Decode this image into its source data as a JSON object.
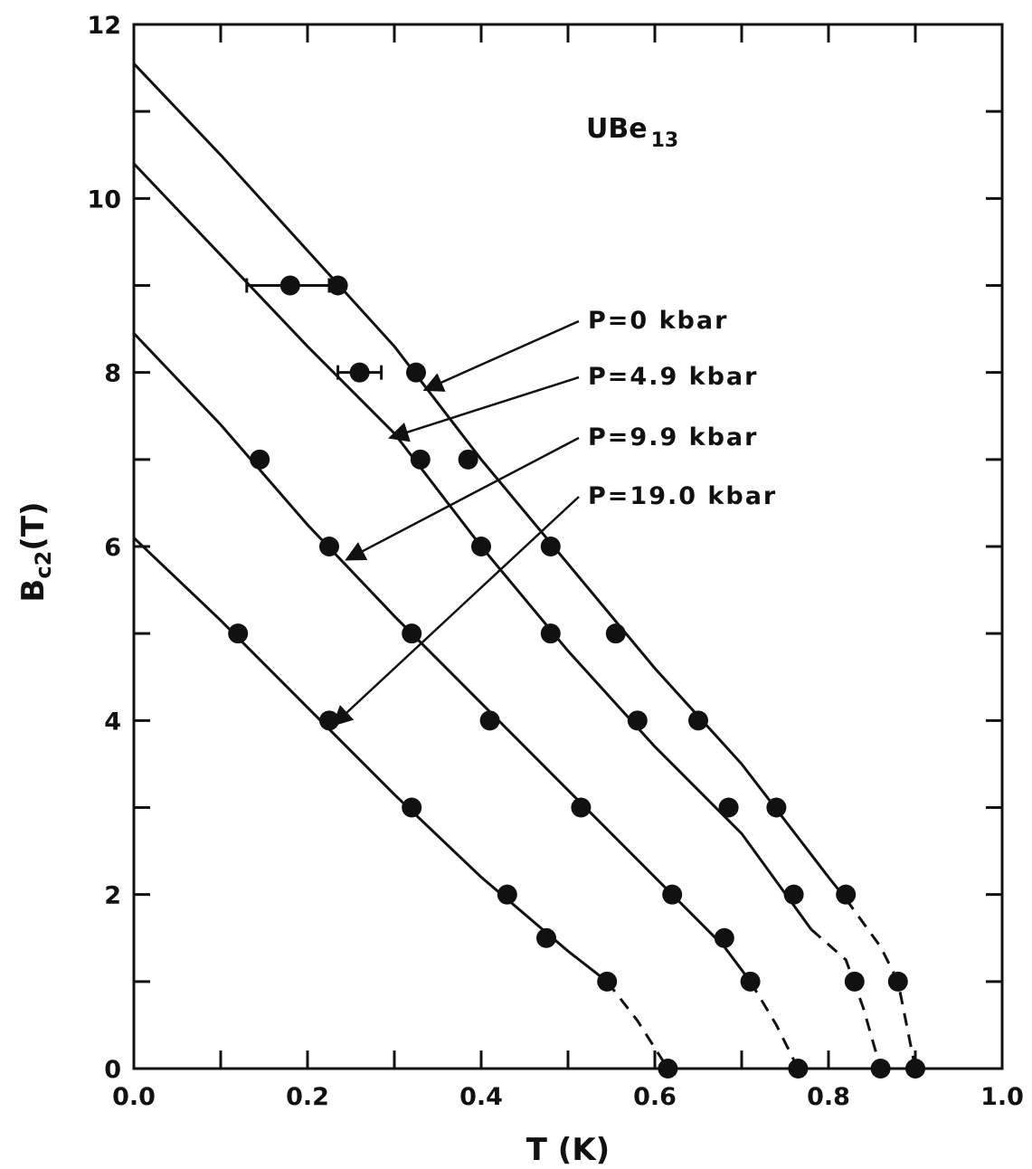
{
  "chart_data": {
    "type": "scatter",
    "title": "",
    "sample_label": {
      "main": "UBe",
      "sub": "13"
    },
    "xlabel": "T (K)",
    "ylabel": {
      "main": "B",
      "sub": "c2",
      "rest": "(T)"
    },
    "xlim": [
      0.0,
      1.0
    ],
    "ylim": [
      0,
      12
    ],
    "x_ticks": [
      "0.0",
      "0.2",
      "0.4",
      "0.6",
      "0.8",
      "1.0"
    ],
    "y_ticks": [
      "0",
      "2",
      "4",
      "6",
      "8",
      "10",
      "12"
    ],
    "grid": false,
    "series": [
      {
        "label": "P=0 kbar",
        "points": [
          [
            0.235,
            9.0
          ],
          [
            0.325,
            8.0
          ],
          [
            0.385,
            7.0
          ],
          [
            0.48,
            6.0
          ],
          [
            0.555,
            5.0
          ],
          [
            0.65,
            4.0
          ],
          [
            0.74,
            3.0
          ],
          [
            0.82,
            2.0
          ],
          [
            0.88,
            1.0
          ],
          [
            0.9,
            0.0
          ]
        ],
        "curve": [
          [
            0.0,
            11.55
          ],
          [
            0.1,
            10.5
          ],
          [
            0.2,
            9.4
          ],
          [
            0.3,
            8.3
          ],
          [
            0.4,
            7.0
          ],
          [
            0.5,
            5.8
          ],
          [
            0.6,
            4.6
          ],
          [
            0.7,
            3.5
          ],
          [
            0.8,
            2.2
          ],
          [
            0.82,
            1.95
          ]
        ],
        "dashed": [
          [
            0.82,
            1.95
          ],
          [
            0.86,
            1.4
          ],
          [
            0.88,
            1.0
          ],
          [
            0.89,
            0.5
          ],
          [
            0.9,
            0.0
          ]
        ]
      },
      {
        "label": "P=4.9 kbar",
        "points": [
          [
            0.18,
            9.0
          ],
          [
            0.26,
            8.0
          ],
          [
            0.33,
            7.0
          ],
          [
            0.4,
            6.0
          ],
          [
            0.48,
            5.0
          ],
          [
            0.58,
            4.0
          ],
          [
            0.685,
            3.0
          ],
          [
            0.76,
            2.0
          ],
          [
            0.83,
            1.0
          ],
          [
            0.86,
            0.0
          ]
        ],
        "curve": [
          [
            0.0,
            10.4
          ],
          [
            0.1,
            9.35
          ],
          [
            0.2,
            8.3
          ],
          [
            0.3,
            7.3
          ],
          [
            0.4,
            6.0
          ],
          [
            0.5,
            4.8
          ],
          [
            0.6,
            3.7
          ],
          [
            0.7,
            2.7
          ],
          [
            0.78,
            1.6
          ]
        ],
        "dashed": [
          [
            0.78,
            1.6
          ],
          [
            0.82,
            1.25
          ],
          [
            0.84,
            0.7
          ],
          [
            0.86,
            0.0
          ]
        ]
      },
      {
        "label": "P=9.9 kbar",
        "points": [
          [
            0.145,
            7.0
          ],
          [
            0.225,
            6.0
          ],
          [
            0.32,
            5.0
          ],
          [
            0.41,
            4.0
          ],
          [
            0.515,
            3.0
          ],
          [
            0.62,
            2.0
          ],
          [
            0.68,
            1.5
          ],
          [
            0.71,
            1.0
          ],
          [
            0.765,
            0.0
          ]
        ],
        "curve": [
          [
            0.0,
            8.45
          ],
          [
            0.1,
            7.4
          ],
          [
            0.2,
            6.25
          ],
          [
            0.3,
            5.2
          ],
          [
            0.4,
            4.2
          ],
          [
            0.5,
            3.2
          ],
          [
            0.6,
            2.2
          ],
          [
            0.68,
            1.4
          ],
          [
            0.71,
            1.0
          ]
        ],
        "dashed": [
          [
            0.71,
            1.0
          ],
          [
            0.74,
            0.5
          ],
          [
            0.765,
            0.0
          ]
        ]
      },
      {
        "label": "P=19.0 kbar",
        "points": [
          [
            0.12,
            5.0
          ],
          [
            0.225,
            4.0
          ],
          [
            0.32,
            3.0
          ],
          [
            0.43,
            2.0
          ],
          [
            0.475,
            1.5
          ],
          [
            0.545,
            1.0
          ],
          [
            0.615,
            0.0
          ]
        ],
        "curve": [
          [
            0.0,
            6.1
          ],
          [
            0.1,
            5.15
          ],
          [
            0.2,
            4.15
          ],
          [
            0.3,
            3.15
          ],
          [
            0.4,
            2.2
          ],
          [
            0.5,
            1.35
          ],
          [
            0.545,
            1.0
          ]
        ],
        "dashed": [
          [
            0.545,
            1.0
          ],
          [
            0.58,
            0.55
          ],
          [
            0.615,
            0.0
          ]
        ]
      }
    ],
    "error_bars": [
      {
        "x": 0.18,
        "y": 9.0,
        "xmin": 0.13,
        "xmax": 0.225
      },
      {
        "x": 0.26,
        "y": 8.0,
        "xmin": 0.235,
        "xmax": 0.285
      }
    ],
    "annotations": [
      {
        "text": "P=0 kbar",
        "arrow_to": [
          0.335,
          7.8
        ]
      },
      {
        "text": "P=4.9 kbar",
        "arrow_to": [
          0.295,
          7.25
        ]
      },
      {
        "text": "P=9.9 kbar",
        "arrow_to": [
          0.245,
          5.85
        ]
      },
      {
        "text": "P=19.0 kbar",
        "arrow_to": [
          0.23,
          3.95
        ]
      }
    ]
  }
}
